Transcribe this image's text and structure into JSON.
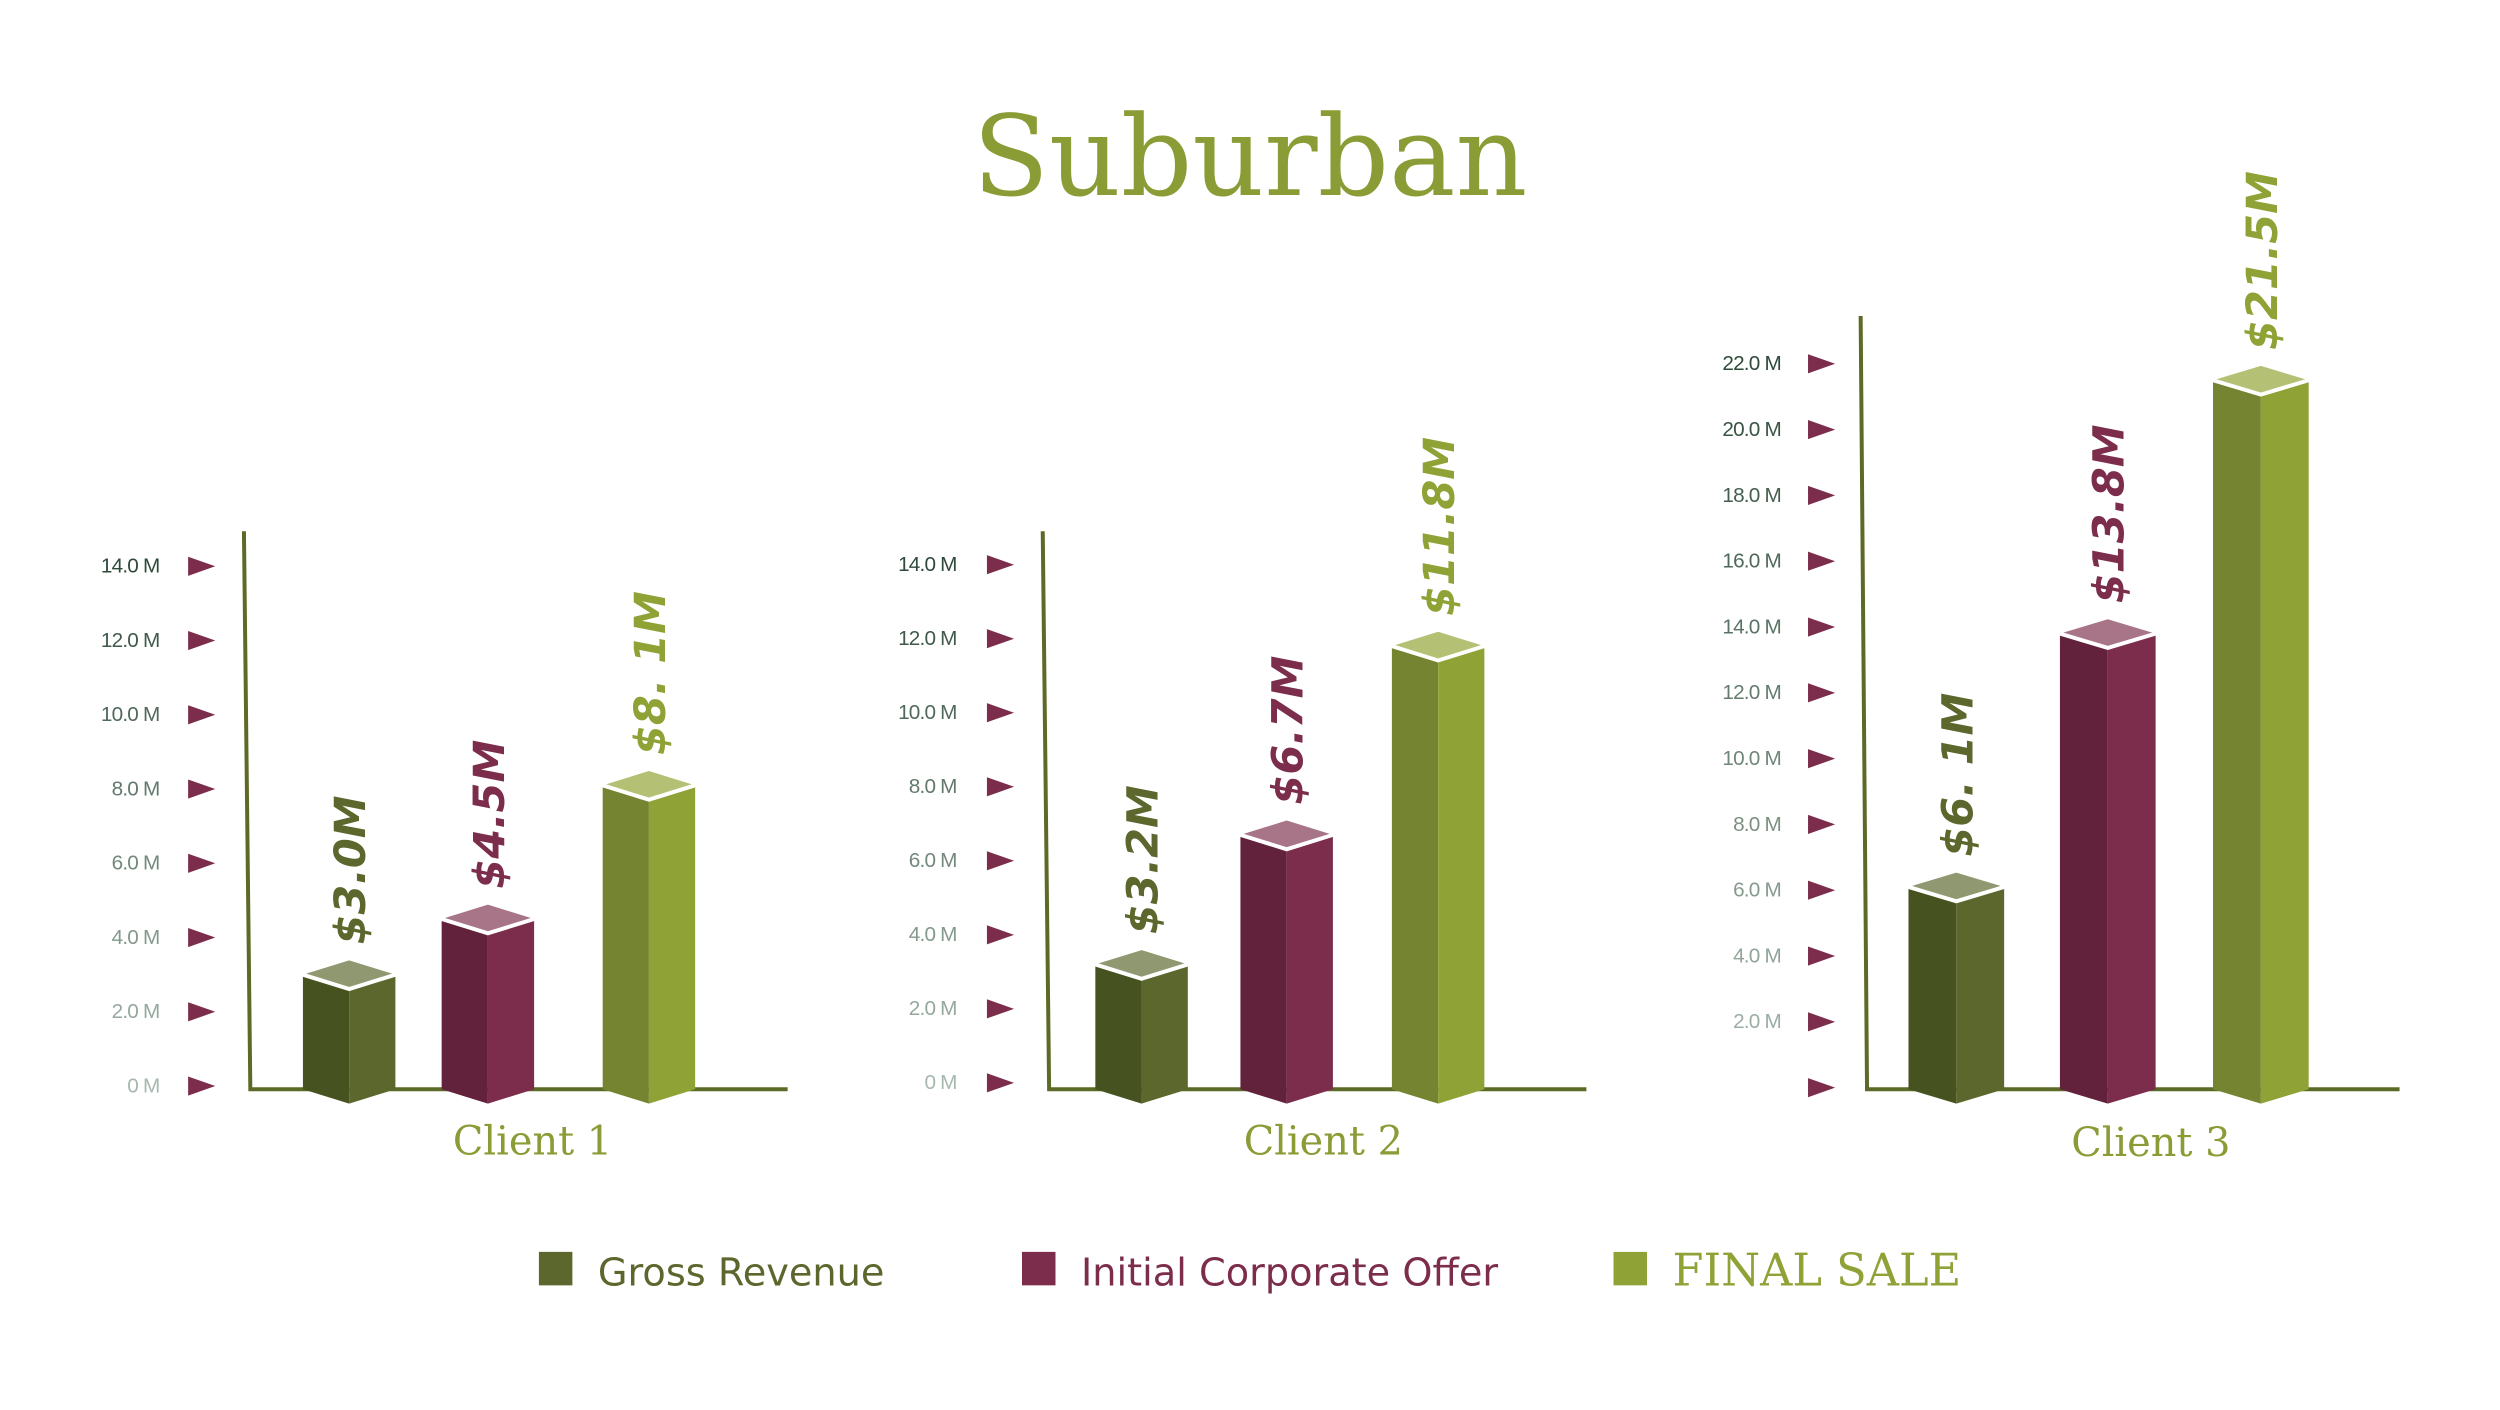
{
  "title": "Suburban",
  "colors": {
    "gross": [
      "#46521f",
      "#5b672c",
      "#8f9870"
    ],
    "offer": [
      "#62223c",
      "#7b2d4b",
      "#a87488"
    ],
    "final": [
      "#748430",
      "#8ea236",
      "#b4c174"
    ],
    "axis": "#5b6a26",
    "tick_marker": "#7b2d4b"
  },
  "legend": [
    {
      "key": "gross",
      "label": "Gross Revenue"
    },
    {
      "key": "offer",
      "label": "Initial Corporate Offer"
    },
    {
      "key": "final",
      "label": "FINAL SALE"
    }
  ],
  "chart_data": [
    {
      "type": "bar",
      "title": "Client 1",
      "categories": [
        "Gross Revenue",
        "Initial Corporate Offer",
        "FINAL SALE"
      ],
      "values": [
        3.0,
        4.5,
        8.1
      ],
      "value_labels": [
        "$3.0M",
        "$4.5M",
        "$8. 1M"
      ],
      "ylim": [
        0,
        14
      ],
      "yticks": [
        "0 M",
        "2.0 M",
        "4.0 M",
        "6.0 M",
        "8.0 M",
        "10.0 M",
        "12.0 M",
        "14.0 M"
      ],
      "ylabel": "",
      "xlabel": ""
    },
    {
      "type": "bar",
      "title": "Client 2",
      "categories": [
        "Gross Revenue",
        "Initial Corporate Offer",
        "FINAL SALE"
      ],
      "values": [
        3.2,
        6.7,
        11.8
      ],
      "value_labels": [
        "$3.2M",
        "$6.7M",
        "$11.8M"
      ],
      "ylim": [
        0,
        14
      ],
      "yticks": [
        "0 M",
        "2.0 M",
        "4.0 M",
        "6.0 M",
        "8.0 M",
        "10.0 M",
        "12.0 M",
        "14.0 M"
      ],
      "ylabel": "",
      "xlabel": ""
    },
    {
      "type": "bar",
      "title": "Client 3",
      "categories": [
        "Gross Revenue",
        "Initial Corporate Offer",
        "FINAL SALE"
      ],
      "values": [
        6.1,
        13.8,
        21.5
      ],
      "value_labels": [
        "$6. 1M",
        "$13.8M",
        "$21.5M"
      ],
      "ylim": [
        0,
        22
      ],
      "yticks": [
        "",
        "2.0 M",
        "4.0 M",
        "6.0 M",
        "8.0 M",
        "10.0 M",
        "12.0 M",
        "14.0 M",
        "16.0 M",
        "18.0 M",
        "20.0 M",
        "22.0 M"
      ],
      "ylabel": "",
      "xlabel": ""
    }
  ]
}
